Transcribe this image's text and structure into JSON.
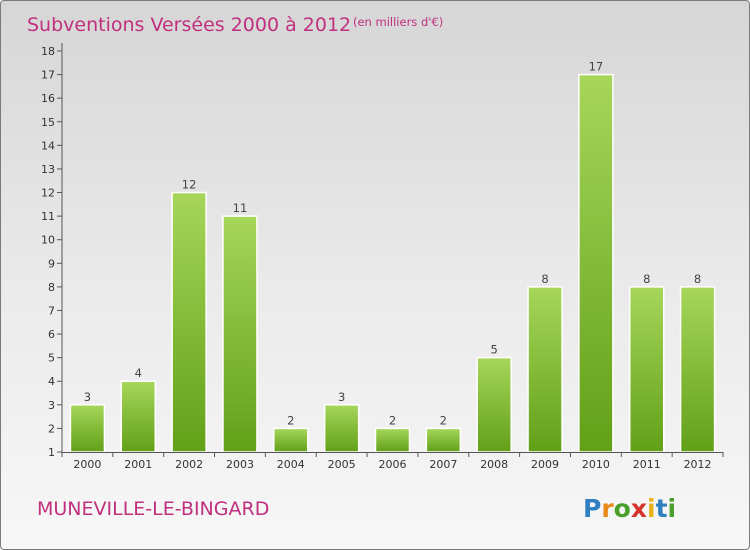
{
  "chart_data": {
    "type": "bar",
    "title": "Subventions Versées 2000 à 2012",
    "subtitle": "(en milliers d'€)",
    "categories": [
      "2000",
      "2001",
      "2002",
      "2003",
      "2004",
      "2005",
      "2006",
      "2007",
      "2008",
      "2009",
      "2010",
      "2011",
      "2012"
    ],
    "values": [
      3,
      4,
      12,
      11,
      2,
      3,
      2,
      2,
      5,
      8,
      17,
      8,
      8
    ],
    "ylim": [
      1,
      18
    ],
    "yticks": [
      1,
      2,
      3,
      4,
      5,
      6,
      7,
      8,
      9,
      10,
      11,
      12,
      13,
      14,
      15,
      16,
      17,
      18
    ],
    "grid": false,
    "legend": "none",
    "bar_color": "#7ab43a"
  },
  "footer": {
    "commune": "MUNEVILLE-LE-BINGARD",
    "logo_text": "Proxiti"
  },
  "colors": {
    "title": "#c0307f",
    "bar_light": "#a6d65a",
    "bar_dark": "#62a018"
  }
}
